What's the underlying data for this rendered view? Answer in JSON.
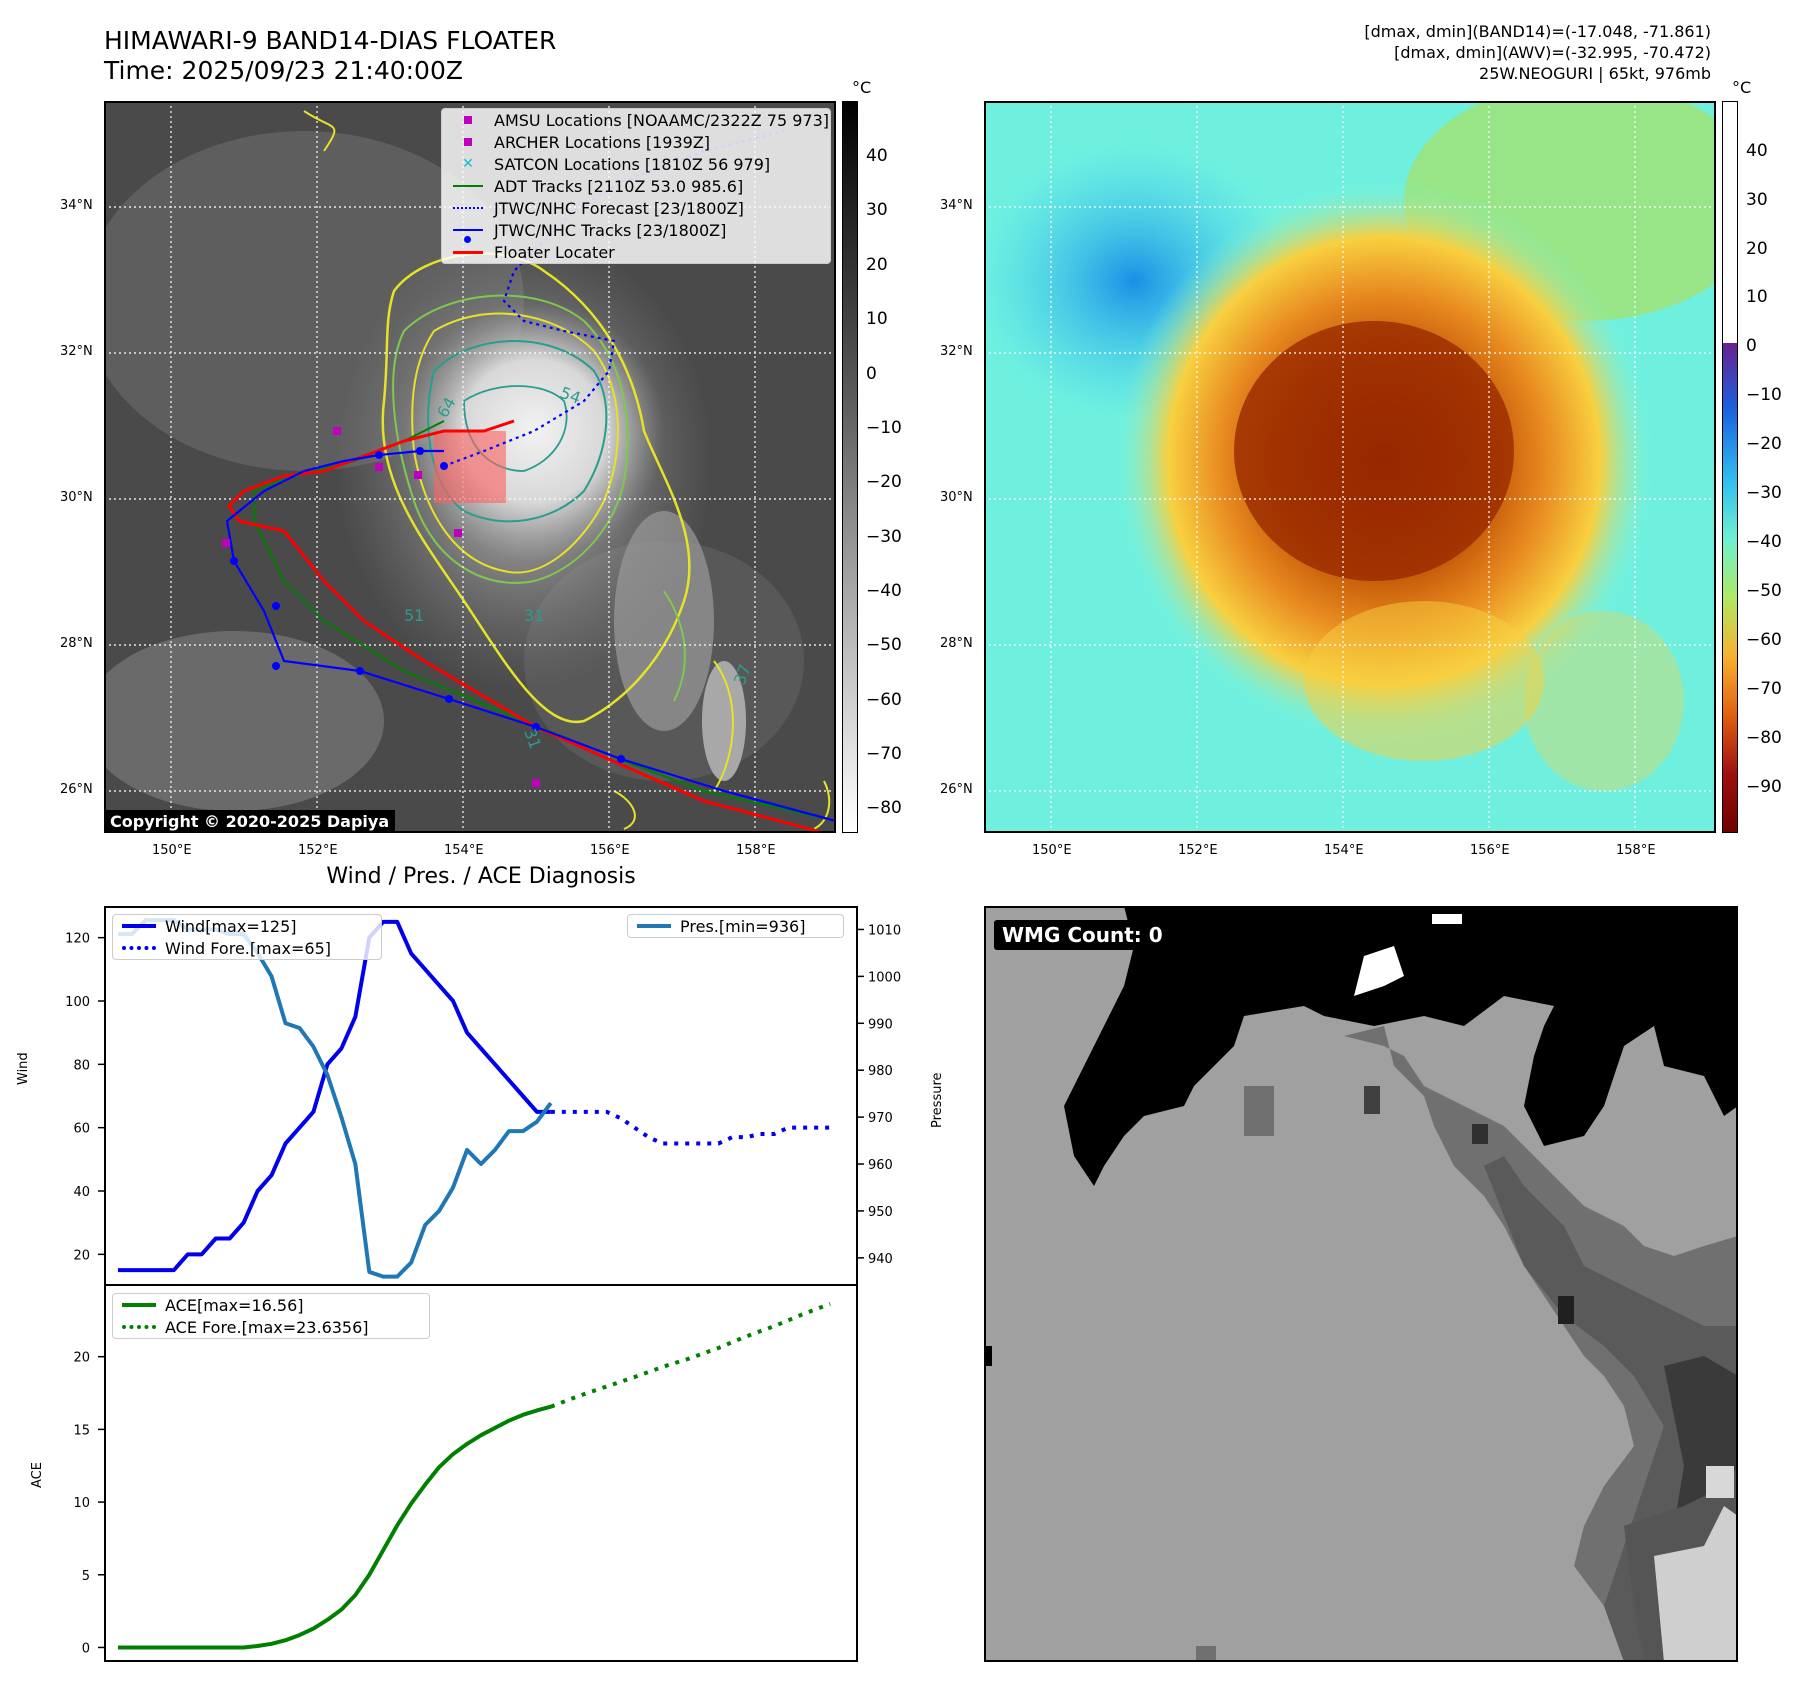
{
  "header": {
    "title": "HIMAWARI-9 BAND14-DIAS FLOATER",
    "time": "Time: 2025/09/23 21:40:00Z",
    "band14_range": "[dmax, dmin](BAND14)=(-17.048, -71.861)",
    "awv_range": "[dmax, dmin](AWV)=(-32.995, -70.472)",
    "storm_info": "25W.NEOGURI | 65kt, 976mb"
  },
  "map_axes": {
    "lat_labels": [
      "34°N",
      "32°N",
      "30°N",
      "28°N",
      "26°N"
    ],
    "lon_labels": [
      "150°E",
      "152°E",
      "154°E",
      "156°E",
      "158°E"
    ]
  },
  "ir_panel": {
    "colorbar_unit": "°C",
    "colorbar_ticks": [
      "40",
      "30",
      "20",
      "10",
      "0",
      "−10",
      "−20",
      "−30",
      "−40",
      "−50",
      "−60",
      "−70",
      "−80"
    ],
    "copyright": "Copyright © 2020-2025 Dapiya",
    "contour_labels": [
      "64",
      "54",
      "51",
      "31",
      "31",
      "37"
    ],
    "legend": [
      {
        "label": "AMSU Locations [NOAAMC/2322Z 75 973]",
        "symbol": "square",
        "color": "#bf00bf"
      },
      {
        "label": "ARCHER Locations [1939Z]",
        "symbol": "square",
        "color": "#bf00bf"
      },
      {
        "label": "SATCON Locations [1810Z 56 979]",
        "symbol": "x",
        "color": "#17becf"
      },
      {
        "label": "ADT Tracks [2110Z 53.0 985.6]",
        "symbol": "line",
        "color": "#008000"
      },
      {
        "label": "JTWC/NHC Forecast [23/1800Z]",
        "symbol": "dotted",
        "color": "#0000ff"
      },
      {
        "label": "JTWC/NHC Tracks [23/1800Z]",
        "symbol": "line-dot",
        "color": "#0000ff"
      },
      {
        "label": "Floater Locater",
        "symbol": "line",
        "color": "#ff0000"
      }
    ]
  },
  "wv_panel": {
    "colorbar_unit": "°C",
    "colorbar_ticks": [
      "40",
      "30",
      "20",
      "10",
      "0",
      "−10",
      "−20",
      "−30",
      "−40",
      "−50",
      "−60",
      "−70",
      "−80",
      "−90"
    ]
  },
  "wmg_panel": {
    "label": "WMG Count: 0"
  },
  "chart_data": [
    {
      "type": "line",
      "title": "Wind / Pres. / ACE Diagnosis",
      "xlabel": "",
      "ylabel": "Wind",
      "y2label": "Pressure",
      "ylim": [
        10,
        130
      ],
      "y2lim": [
        934,
        1015
      ],
      "yticks": [
        "20",
        "40",
        "60",
        "80",
        "100",
        "120"
      ],
      "y2ticks": [
        "940",
        "950",
        "960",
        "970",
        "980",
        "990",
        "1000",
        "1010"
      ],
      "legend": [
        "Wind[max=125]",
        "Wind Fore.[max=65]",
        "Pres.[min=936]"
      ],
      "series": [
        {
          "name": "Wind[max=125]",
          "style": "solid",
          "color": "#0000ee",
          "axis": "left",
          "x": [
            0,
            1,
            2,
            3,
            4,
            5,
            6,
            7,
            8,
            9,
            10,
            11,
            12,
            13,
            14,
            15,
            16,
            17,
            18,
            19,
            20,
            21,
            22,
            23,
            24,
            25,
            26,
            27,
            28,
            29,
            30,
            31
          ],
          "values": [
            15,
            15,
            15,
            15,
            15,
            20,
            20,
            25,
            25,
            30,
            40,
            45,
            55,
            60,
            65,
            80,
            85,
            95,
            120,
            125,
            125,
            115,
            110,
            105,
            100,
            90,
            85,
            80,
            75,
            70,
            65,
            65
          ]
        },
        {
          "name": "Wind Fore.[max=65]",
          "style": "dotted",
          "color": "#0000ee",
          "axis": "left",
          "x": [
            31,
            32,
            33,
            34,
            35,
            36,
            37,
            38,
            39,
            40,
            41,
            42,
            43,
            44,
            45,
            46,
            47,
            48,
            49,
            50,
            51
          ],
          "values": [
            65,
            65,
            65,
            65,
            65,
            63,
            60,
            57,
            55,
            55,
            55,
            55,
            55,
            57,
            57,
            58,
            58,
            60,
            60,
            60,
            60
          ]
        },
        {
          "name": "Pres.[min=936]",
          "style": "solid",
          "color": "#1f77b4",
          "axis": "right",
          "x": [
            0,
            1,
            2,
            3,
            4,
            5,
            6,
            7,
            8,
            9,
            10,
            11,
            12,
            13,
            14,
            15,
            16,
            17,
            18,
            19,
            20,
            21,
            22,
            23,
            24,
            25,
            26,
            27,
            28,
            29,
            30,
            31
          ],
          "values": [
            1009,
            1009,
            1012,
            1012,
            1012,
            1010,
            1010,
            1010,
            1009,
            1009,
            1005,
            1000,
            990,
            989,
            985,
            979,
            970,
            960,
            937,
            936,
            936,
            939,
            947,
            950,
            955,
            963,
            960,
            963,
            967,
            967,
            969,
            973
          ]
        }
      ]
    },
    {
      "type": "line",
      "title": "",
      "xlabel": "",
      "ylabel": "ACE",
      "ylim": [
        -1,
        25
      ],
      "yticks": [
        "0",
        "5",
        "10",
        "15",
        "20"
      ],
      "legend": [
        "ACE[max=16.56]",
        "ACE Fore.[max=23.6356]"
      ],
      "series": [
        {
          "name": "ACE[max=16.56]",
          "style": "solid",
          "color": "#008000",
          "x": [
            0,
            1,
            2,
            3,
            4,
            5,
            6,
            7,
            8,
            9,
            10,
            11,
            12,
            13,
            14,
            15,
            16,
            17,
            18,
            19,
            20,
            21,
            22,
            23,
            24,
            25,
            26,
            27,
            28,
            29,
            30,
            31
          ],
          "values": [
            0,
            0,
            0,
            0,
            0,
            0,
            0,
            0,
            0,
            0,
            0.1,
            0.25,
            0.5,
            0.85,
            1.3,
            1.9,
            2.6,
            3.6,
            5,
            6.7,
            8.4,
            9.9,
            11.2,
            12.4,
            13.3,
            14,
            14.6,
            15.1,
            15.6,
            16,
            16.3,
            16.56
          ]
        },
        {
          "name": "ACE Fore.[max=23.6356]",
          "style": "dotted",
          "color": "#008000",
          "x": [
            31,
            33,
            35,
            37,
            39,
            41,
            43,
            45,
            47,
            49,
            51
          ],
          "values": [
            16.56,
            17.3,
            17.95,
            18.6,
            19.3,
            19.9,
            20.6,
            21.4,
            22.1,
            22.9,
            23.6356
          ]
        }
      ]
    }
  ]
}
